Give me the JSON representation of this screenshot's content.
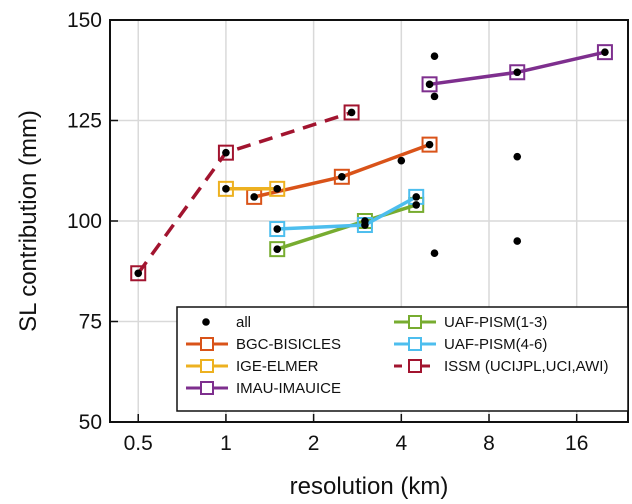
{
  "chart_data": {
    "type": "line",
    "xlabel": "resolution (km)",
    "ylabel": "SL contribution (mm)",
    "xscale": "log2",
    "xlim": [
      0.4,
      24
    ],
    "ylim": [
      50,
      150
    ],
    "xticks": [
      0.5,
      1,
      2,
      4,
      8,
      16
    ],
    "xtick_labels": [
      "0.5",
      "1",
      "2",
      "4",
      "8",
      "16"
    ],
    "yticks": [
      50,
      75,
      100,
      125,
      150
    ],
    "ytick_labels": [
      "50",
      "75",
      "100",
      "125",
      "150"
    ],
    "grid": true,
    "legend_position": "bottom-right",
    "all_points": {
      "name": "all",
      "color": "#000000",
      "points": [
        [
          0.5,
          87
        ],
        [
          1,
          117
        ],
        [
          1,
          108
        ],
        [
          1.25,
          106
        ],
        [
          1.5,
          108
        ],
        [
          1.5,
          98
        ],
        [
          1.5,
          93
        ],
        [
          2.5,
          111
        ],
        [
          2.7,
          127
        ],
        [
          3,
          100
        ],
        [
          3,
          99
        ],
        [
          4,
          115
        ],
        [
          4.5,
          106
        ],
        [
          4.5,
          104
        ],
        [
          5,
          119
        ],
        [
          5,
          134
        ],
        [
          5.2,
          141
        ],
        [
          5.2,
          131
        ],
        [
          5.2,
          92
        ],
        [
          10,
          116
        ],
        [
          10,
          95
        ],
        [
          10,
          137
        ],
        [
          20,
          142
        ]
      ]
    },
    "series": [
      {
        "name": "BGC-BISICLES",
        "color": "#d95319",
        "dash": false,
        "x": [
          1.25,
          2.5,
          5
        ],
        "y": [
          106,
          111,
          119
        ]
      },
      {
        "name": "IGE-ELMER",
        "color": "#edb120",
        "dash": false,
        "x": [
          1,
          1.5
        ],
        "y": [
          108,
          108
        ]
      },
      {
        "name": "IMAU-IMAUICE",
        "color": "#7e2f8e",
        "dash": false,
        "x": [
          5,
          10,
          20
        ],
        "y": [
          134,
          137,
          142
        ]
      },
      {
        "name": "UAF-PISM(1-3)",
        "color": "#77ac30",
        "dash": false,
        "x": [
          1.5,
          3,
          4.5
        ],
        "y": [
          93,
          100,
          104
        ]
      },
      {
        "name": "UAF-PISM(4-6)",
        "color": "#4dbeee",
        "dash": false,
        "x": [
          1.5,
          3,
          4.5
        ],
        "y": [
          98,
          99,
          106
        ]
      },
      {
        "name": "ISSM (UCIJPL,UCI,AWI)",
        "color": "#a2142f",
        "dash": true,
        "x": [
          0.5,
          1,
          2.7
        ],
        "y": [
          87,
          117,
          127
        ]
      }
    ]
  }
}
